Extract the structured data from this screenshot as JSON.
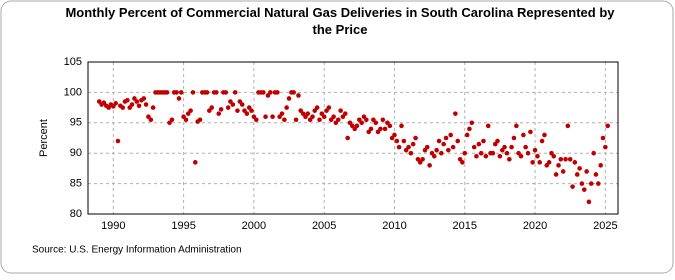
{
  "chart_data": {
    "type": "scatter",
    "title": "Monthly Percent of Commercial Natural Gas Deliveries in South Carolina Represented by the Price",
    "y_label": "Percent",
    "source": "Source: U.S. Energy Information Administration",
    "color": "#c00000",
    "grid": true,
    "xlim": [
      1988.2,
      2025.9
    ],
    "ylim": [
      80,
      105
    ],
    "xticks": [
      1990,
      1995,
      2000,
      2005,
      2010,
      2015,
      2020,
      2025
    ],
    "yticks": [
      80,
      85,
      90,
      95,
      100,
      105
    ],
    "series": [
      {
        "name": "Percent",
        "x": [
          1989,
          1989.17,
          1989.33,
          1989.5,
          1989.67,
          1989.83,
          1990,
          1990.17,
          1990.33,
          1990.5,
          1990.67,
          1990.83,
          1991,
          1991.17,
          1991.33,
          1991.5,
          1991.67,
          1991.83,
          1992,
          1992.17,
          1992.33,
          1992.5,
          1992.67,
          1992.83,
          1993,
          1993.17,
          1993.33,
          1993.5,
          1993.67,
          1993.83,
          1994,
          1994.17,
          1994.33,
          1994.5,
          1994.67,
          1994.83,
          1995,
          1995.17,
          1995.33,
          1995.5,
          1995.67,
          1995.83,
          1996,
          1996.17,
          1996.33,
          1996.5,
          1996.67,
          1996.83,
          1997,
          1997.17,
          1997.33,
          1997.5,
          1997.67,
          1997.83,
          1998,
          1998.17,
          1998.33,
          1998.5,
          1998.67,
          1998.83,
          1999,
          1999.17,
          1999.33,
          1999.5,
          1999.67,
          1999.83,
          2000,
          2000.17,
          2000.33,
          2000.5,
          2000.67,
          2000.83,
          2001,
          2001.17,
          2001.33,
          2001.5,
          2001.67,
          2001.83,
          2002,
          2002.17,
          2002.33,
          2002.5,
          2002.67,
          2002.83,
          2003,
          2003.17,
          2003.33,
          2003.5,
          2003.67,
          2003.83,
          2004,
          2004.17,
          2004.33,
          2004.5,
          2004.67,
          2004.83,
          2005,
          2005.17,
          2005.33,
          2005.5,
          2005.67,
          2005.83,
          2006,
          2006.17,
          2006.33,
          2006.5,
          2006.67,
          2006.83,
          2007,
          2007.17,
          2007.33,
          2007.5,
          2007.67,
          2007.83,
          2008,
          2008.17,
          2008.33,
          2008.5,
          2008.67,
          2008.83,
          2009,
          2009.17,
          2009.33,
          2009.5,
          2009.67,
          2009.83,
          2010,
          2010.17,
          2010.33,
          2010.5,
          2010.67,
          2010.83,
          2011,
          2011.17,
          2011.33,
          2011.5,
          2011.67,
          2011.83,
          2012,
          2012.17,
          2012.33,
          2012.5,
          2012.67,
          2012.83,
          2013,
          2013.17,
          2013.33,
          2013.5,
          2013.67,
          2013.83,
          2014,
          2014.17,
          2014.33,
          2014.5,
          2014.67,
          2014.83,
          2015,
          2015.17,
          2015.33,
          2015.5,
          2015.67,
          2015.83,
          2016,
          2016.17,
          2016.33,
          2016.5,
          2016.67,
          2016.83,
          2017,
          2017.17,
          2017.33,
          2017.5,
          2017.67,
          2017.83,
          2018,
          2018.17,
          2018.33,
          2018.5,
          2018.67,
          2018.83,
          2019,
          2019.17,
          2019.33,
          2019.5,
          2019.67,
          2019.83,
          2020,
          2020.17,
          2020.33,
          2020.5,
          2020.67,
          2020.83,
          2021,
          2021.17,
          2021.33,
          2021.5,
          2021.67,
          2021.83,
          2022,
          2022.17,
          2022.33,
          2022.5,
          2022.67,
          2022.83,
          2023,
          2023.17,
          2023.33,
          2023.5,
          2023.67,
          2023.83,
          2024,
          2024.17,
          2024.33,
          2024.5,
          2024.67,
          2024.83,
          2025,
          2025.17
        ],
        "values": [
          98.5,
          98,
          98.3,
          97.8,
          97.5,
          98,
          97.7,
          98.2,
          92,
          97.8,
          97.5,
          98.5,
          98.7,
          97.5,
          98,
          99,
          98.5,
          97.8,
          98.7,
          99,
          98,
          96,
          95.5,
          97.5,
          100,
          100,
          100,
          100,
          100,
          100,
          95,
          95.5,
          100,
          100,
          99,
          100,
          96,
          95.5,
          96.5,
          97,
          100,
          88.5,
          95.2,
          95.5,
          100,
          100,
          100,
          97,
          97.5,
          100,
          100,
          96.5,
          97.2,
          100,
          100,
          97.5,
          98.5,
          98,
          100,
          97,
          98.5,
          98,
          97,
          96.5,
          97.5,
          97,
          96,
          95.5,
          100,
          100,
          100,
          96,
          99.5,
          100,
          96,
          100,
          100,
          96,
          96.5,
          95.5,
          97.5,
          99,
          100,
          100,
          95.5,
          99.5,
          97,
          96.5,
          96,
          96.5,
          95.5,
          96,
          97,
          97.5,
          95.5,
          96.5,
          96,
          97,
          97.5,
          95.5,
          96,
          95,
          95.5,
          97,
          96,
          96.5,
          92.5,
          95,
          94.5,
          94,
          94.5,
          95.5,
          95,
          96,
          95.5,
          93.5,
          94,
          95.5,
          95,
          93.5,
          94,
          95.5,
          94,
          95,
          94.5,
          92.5,
          93,
          92,
          91,
          94.5,
          92,
          90.5,
          91,
          90,
          91.5,
          92.5,
          89,
          88.5,
          89,
          90.5,
          91,
          88,
          90,
          89.5,
          90.5,
          92,
          90,
          91.5,
          92.5,
          90.5,
          93,
          91,
          96.5,
          92,
          89,
          88.5,
          90,
          93,
          94,
          95,
          91,
          89.5,
          91.5,
          90,
          92,
          89.5,
          94.5,
          90,
          90,
          91.5,
          92,
          89.5,
          90.5,
          91,
          90,
          89,
          91,
          92.5,
          94.5,
          90,
          89.5,
          93,
          91,
          90,
          93.5,
          88.5,
          90.5,
          89.5,
          88.5,
          92,
          93,
          88,
          88.5,
          90,
          89.5,
          86.5,
          88,
          89,
          87,
          89,
          94.5,
          89,
          84.5,
          88.5,
          86.5,
          87.5,
          85,
          84,
          87,
          82,
          85,
          90,
          86.5,
          85,
          88,
          92.5,
          91,
          94.5
        ]
      }
    ]
  }
}
